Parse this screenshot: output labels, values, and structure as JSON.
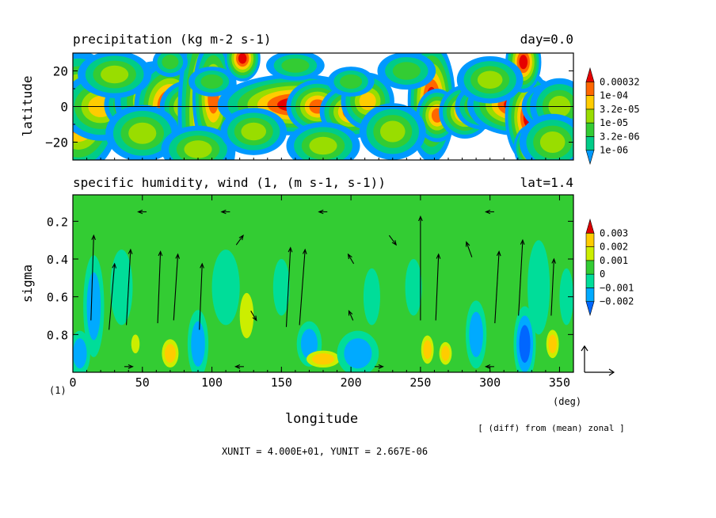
{
  "chart_data": [
    {
      "type": "heatmap",
      "title": "precipitation (kg m-2 s-1)",
      "annotation_right": "day=0.0",
      "ylabel": "latitude",
      "xlim": [
        0,
        360
      ],
      "ylim": [
        -30,
        30
      ],
      "y_ticks": [
        "20",
        "0",
        "−20"
      ],
      "y_tick_values": [
        20,
        0,
        -20
      ],
      "zero_line": true,
      "colorbar": {
        "labels": [
          "0.00032",
          "1e-04",
          "3.2e-05",
          "1e-05",
          "3.2e-06",
          "1e-06"
        ],
        "colors": [
          "#0099ff",
          "#00cc88",
          "#33cc33",
          "#99dd00",
          "#ffcc00",
          "#ff6600",
          "#e60000"
        ]
      },
      "features": [
        {
          "lon": 4,
          "lat": -3,
          "level": 7,
          "rx": 7,
          "ry": 8
        },
        {
          "lon": 20,
          "lat": 0,
          "level": 5,
          "rx": 9,
          "ry": 6
        },
        {
          "lon": 45,
          "lat": 1,
          "level": 6,
          "rx": 6,
          "ry": 4
        },
        {
          "lon": 60,
          "lat": 3,
          "level": 6,
          "rx": 8,
          "ry": 6
        },
        {
          "lon": 70,
          "lat": 0,
          "level": 7,
          "rx": 6,
          "ry": 6
        },
        {
          "lon": 85,
          "lat": 0,
          "level": 6,
          "rx": 6,
          "ry": 4
        },
        {
          "lon": 97,
          "lat": -3,
          "level": 7,
          "rx": 5,
          "ry": 14
        },
        {
          "lon": 101,
          "lat": 5,
          "level": 6,
          "rx": 4,
          "ry": 9
        },
        {
          "lon": 122,
          "lat": 27,
          "level": 7,
          "rx": 3,
          "ry": 3
        },
        {
          "lon": 160,
          "lat": 1,
          "level": 7,
          "rx": 13,
          "ry": 4
        },
        {
          "lon": 176,
          "lat": 0,
          "level": 6,
          "rx": 6,
          "ry": 4
        },
        {
          "lon": 200,
          "lat": -3,
          "level": 6,
          "rx": 6,
          "ry": 4
        },
        {
          "lon": 212,
          "lat": 3,
          "level": 5,
          "rx": 6,
          "ry": 5
        },
        {
          "lon": 258,
          "lat": 3,
          "level": 7,
          "rx": 4,
          "ry": 8
        },
        {
          "lon": 262,
          "lat": -5,
          "level": 6,
          "rx": 4,
          "ry": 4
        },
        {
          "lon": 282,
          "lat": -3,
          "level": 6,
          "rx": 5,
          "ry": 4
        },
        {
          "lon": 294,
          "lat": 0,
          "level": 5,
          "rx": 6,
          "ry": 4
        },
        {
          "lon": 318,
          "lat": 1,
          "level": 7,
          "rx": 8,
          "ry": 4
        },
        {
          "lon": 328,
          "lat": -6,
          "level": 7,
          "rx": 4,
          "ry": 6
        },
        {
          "lon": 324,
          "lat": 25,
          "level": 7,
          "rx": 3,
          "ry": 4
        },
        {
          "lon": 330,
          "lat": -23,
          "level": 7,
          "rx": 3,
          "ry": 3
        },
        {
          "lon": 342,
          "lat": 0,
          "level": 5,
          "rx": 6,
          "ry": 4
        },
        {
          "lon": 350,
          "lat": 0,
          "level": 4,
          "rx": 8,
          "ry": 6
        },
        {
          "lon": 30,
          "lat": 18,
          "level": 4,
          "rx": 10,
          "ry": 5
        },
        {
          "lon": 50,
          "lat": -15,
          "level": 4,
          "rx": 10,
          "ry": 6
        },
        {
          "lon": 90,
          "lat": -24,
          "level": 4,
          "rx": 10,
          "ry": 5
        },
        {
          "lon": 130,
          "lat": -14,
          "level": 4,
          "rx": 9,
          "ry": 5
        },
        {
          "lon": 180,
          "lat": -22,
          "level": 4,
          "rx": 10,
          "ry": 5
        },
        {
          "lon": 230,
          "lat": -14,
          "level": 4,
          "rx": 9,
          "ry": 6
        },
        {
          "lon": 240,
          "lat": 20,
          "level": 3,
          "rx": 10,
          "ry": 5
        },
        {
          "lon": 300,
          "lat": 15,
          "level": 4,
          "rx": 9,
          "ry": 5
        },
        {
          "lon": 345,
          "lat": -20,
          "level": 4,
          "rx": 9,
          "ry": 6
        },
        {
          "lon": 70,
          "lat": 25,
          "level": 3,
          "rx": 6,
          "ry": 4
        },
        {
          "lon": 160,
          "lat": 23,
          "level": 3,
          "rx": 10,
          "ry": 4
        },
        {
          "lon": 200,
          "lat": 14,
          "level": 3,
          "rx": 8,
          "ry": 4
        },
        {
          "lon": 100,
          "lat": 14,
          "level": 3,
          "rx": 8,
          "ry": 4
        }
      ]
    },
    {
      "type": "heatmap",
      "title": "specific humidity, wind (1, (m s-1, s-1))",
      "annotation_right": "lat=1.4",
      "xlabel": "longitude",
      "x_unit_label": "(deg)",
      "ylabel": "sigma",
      "xlim": [
        0,
        360
      ],
      "ylim": [
        1.0,
        0.0
      ],
      "x_ticks": [
        "0",
        "50",
        "100",
        "150",
        "200",
        "250",
        "300",
        "350"
      ],
      "x_tick_values": [
        0,
        50,
        100,
        150,
        200,
        250,
        300,
        350
      ],
      "y_ticks": [
        "0.2",
        "0.4",
        "0.6",
        "0.8"
      ],
      "y_tick_values": [
        0.2,
        0.4,
        0.6,
        0.8
      ],
      "corner_label": "(1)",
      "colorbar": {
        "labels": [
          "0.003",
          "0.002",
          "0.001",
          "0",
          "−0.001",
          "−0.002"
        ],
        "colors": [
          "#0066ff",
          "#00aaff",
          "#00dd99",
          "#33cc33",
          "#ccee00",
          "#ffcc00",
          "#dd0000"
        ]
      },
      "background_level": 3,
      "features": [
        {
          "lon": 15,
          "sigma": 0.65,
          "level": 1,
          "rx": 5,
          "ry": 0.18
        },
        {
          "lon": 5,
          "sigma": 0.9,
          "level": 1,
          "rx": 5,
          "ry": 0.08
        },
        {
          "lon": 35,
          "sigma": 0.55,
          "level": 2,
          "rx": 8,
          "ry": 0.2
        },
        {
          "lon": 45,
          "sigma": 0.85,
          "level": 4,
          "rx": 3,
          "ry": 0.05
        },
        {
          "lon": 70,
          "sigma": 0.9,
          "level": 5,
          "rx": 4,
          "ry": 0.05
        },
        {
          "lon": 90,
          "sigma": 0.85,
          "level": 1,
          "rx": 5,
          "ry": 0.12
        },
        {
          "lon": 110,
          "sigma": 0.55,
          "level": 2,
          "rx": 10,
          "ry": 0.2
        },
        {
          "lon": 125,
          "sigma": 0.7,
          "level": 4,
          "rx": 5,
          "ry": 0.12
        },
        {
          "lon": 150,
          "sigma": 0.55,
          "level": 2,
          "rx": 6,
          "ry": 0.15
        },
        {
          "lon": 170,
          "sigma": 0.85,
          "level": 1,
          "rx": 6,
          "ry": 0.08
        },
        {
          "lon": 180,
          "sigma": 0.93,
          "level": 5,
          "rx": 8,
          "ry": 0.03
        },
        {
          "lon": 205,
          "sigma": 0.9,
          "level": 1,
          "rx": 10,
          "ry": 0.08
        },
        {
          "lon": 215,
          "sigma": 0.6,
          "level": 2,
          "rx": 6,
          "ry": 0.15
        },
        {
          "lon": 245,
          "sigma": 0.55,
          "level": 2,
          "rx": 6,
          "ry": 0.15
        },
        {
          "lon": 255,
          "sigma": 0.88,
          "level": 5,
          "rx": 3,
          "ry": 0.05
        },
        {
          "lon": 268,
          "sigma": 0.9,
          "level": 5,
          "rx": 3,
          "ry": 0.04
        },
        {
          "lon": 290,
          "sigma": 0.8,
          "level": 1,
          "rx": 5,
          "ry": 0.12
        },
        {
          "lon": 325,
          "sigma": 0.85,
          "level": 0,
          "rx": 4,
          "ry": 0.1
        },
        {
          "lon": 335,
          "sigma": 0.55,
          "level": 2,
          "rx": 8,
          "ry": 0.25
        },
        {
          "lon": 345,
          "sigma": 0.85,
          "level": 5,
          "rx": 3,
          "ry": 0.05
        },
        {
          "lon": 355,
          "sigma": 0.6,
          "level": 2,
          "rx": 5,
          "ry": 0.15
        }
      ],
      "vectors": [
        {
          "lon": 14,
          "sigma": 0.5,
          "u": 2,
          "v": 0.45
        },
        {
          "lon": 28,
          "sigma": 0.6,
          "u": 4,
          "v": 0.35
        },
        {
          "lon": 40,
          "sigma": 0.55,
          "u": 3,
          "v": 0.4
        },
        {
          "lon": 62,
          "sigma": 0.55,
          "u": 2,
          "v": 0.38
        },
        {
          "lon": 74,
          "sigma": 0.55,
          "u": 3,
          "v": 0.35
        },
        {
          "lon": 92,
          "sigma": 0.6,
          "u": 2,
          "v": 0.35
        },
        {
          "lon": 155,
          "sigma": 0.55,
          "u": 3,
          "v": 0.42
        },
        {
          "lon": 165,
          "sigma": 0.55,
          "u": 4,
          "v": 0.4
        },
        {
          "lon": 250,
          "sigma": 0.45,
          "u": 0,
          "v": 0.55
        },
        {
          "lon": 262,
          "sigma": 0.55,
          "u": 2,
          "v": 0.35
        },
        {
          "lon": 305,
          "sigma": 0.55,
          "u": 3,
          "v": 0.38
        },
        {
          "lon": 322,
          "sigma": 0.5,
          "u": 3,
          "v": 0.4
        },
        {
          "lon": 345,
          "sigma": 0.55,
          "u": 2,
          "v": 0.3
        },
        {
          "lon": 120,
          "sigma": 0.3,
          "u": 5,
          "v": 0.05
        },
        {
          "lon": 200,
          "sigma": 0.4,
          "u": -4,
          "v": 0.05
        },
        {
          "lon": 230,
          "sigma": 0.3,
          "u": 5,
          "v": -0.05
        },
        {
          "lon": 285,
          "sigma": 0.35,
          "u": -4,
          "v": 0.08
        },
        {
          "lon": 130,
          "sigma": 0.7,
          "u": 4,
          "v": -0.05
        },
        {
          "lon": 200,
          "sigma": 0.7,
          "u": -3,
          "v": 0.05
        },
        {
          "lon": 50,
          "sigma": 0.15,
          "u": -6,
          "v": 0
        },
        {
          "lon": 110,
          "sigma": 0.15,
          "u": -6,
          "v": 0
        },
        {
          "lon": 180,
          "sigma": 0.15,
          "u": -6,
          "v": 0
        },
        {
          "lon": 300,
          "sigma": 0.15,
          "u": -6,
          "v": 0
        },
        {
          "lon": 40,
          "sigma": 0.97,
          "u": 6,
          "v": 0
        },
        {
          "lon": 120,
          "sigma": 0.97,
          "u": -6,
          "v": 0
        },
        {
          "lon": 220,
          "sigma": 0.97,
          "u": 6,
          "v": 0
        },
        {
          "lon": 300,
          "sigma": 0.97,
          "u": -6,
          "v": 0
        }
      ],
      "note": "[ (diff) from (mean) zonal ]",
      "unit_text": "XUNIT = 4.000E+01, YUNIT = 2.667E-06"
    }
  ]
}
